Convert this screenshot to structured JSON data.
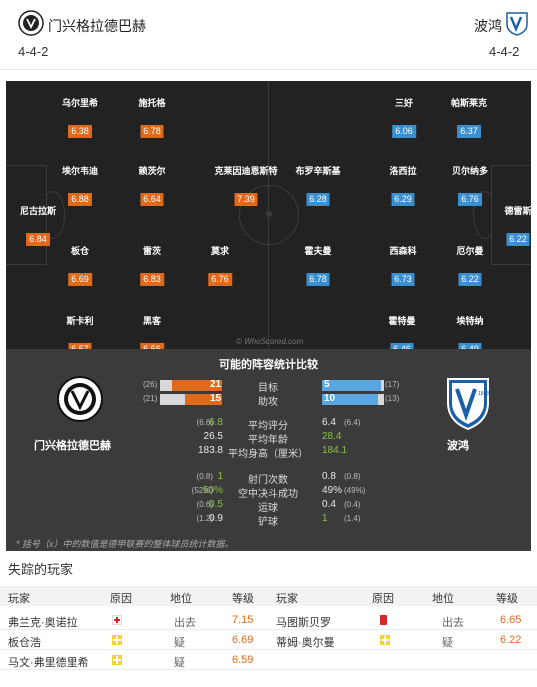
{
  "header": {
    "home": {
      "name": "门兴格拉德巴赫",
      "formation": "4-4-2"
    },
    "away": {
      "name": "波鸿",
      "formation": "4-4-2"
    }
  },
  "pitch": {
    "watermark": "© WhoScored.com",
    "home_players": [
      {
        "name": "乌尔里希",
        "rating": "6.38"
      },
      {
        "name": "施托格",
        "rating": "6.78"
      },
      {
        "name": "埃尔韦迪",
        "rating": "6.88"
      },
      {
        "name": "赖茨尔",
        "rating": "6.64"
      },
      {
        "name": "克莱因迪恩斯特",
        "rating": "7.39"
      },
      {
        "name": "尼古拉斯",
        "rating": "6.84"
      },
      {
        "name": "板仓",
        "rating": "6.69"
      },
      {
        "name": "雷茨",
        "rating": "6.83"
      },
      {
        "name": "莫求",
        "rating": "6.76"
      },
      {
        "name": "斯卡利",
        "rating": "6.57"
      },
      {
        "name": "黑客",
        "rating": "6.56"
      }
    ],
    "away_players": [
      {
        "name": "三好",
        "rating": "6.06"
      },
      {
        "name": "帕斯莱克",
        "rating": "6.37"
      },
      {
        "name": "布罗辛斯基",
        "rating": "6.28"
      },
      {
        "name": "洛西拉",
        "rating": "6.29"
      },
      {
        "name": "贝尔纳多",
        "rating": "6.76"
      },
      {
        "name": "德雷斯",
        "rating": "6.22"
      },
      {
        "name": "霍夫曼",
        "rating": "6.78"
      },
      {
        "name": "西森科",
        "rating": "6.73"
      },
      {
        "name": "厄尔曼",
        "rating": "6.22"
      },
      {
        "name": "霍特曼",
        "rating": "6.46"
      },
      {
        "name": "埃特纳",
        "rating": "6.49"
      }
    ]
  },
  "stats": {
    "title": "可能的阵容统计比较",
    "home_team": "门兴格拉德巴赫",
    "away_team": "波鸿",
    "bars": [
      {
        "label": "目标",
        "home_small": "(26)",
        "home": "21",
        "away": "5",
        "away_small": "(17)",
        "home_frac": 0.8,
        "away_frac": 0.2
      },
      {
        "label": "助攻",
        "home_small": "(21)",
        "home": "15",
        "away": "10",
        "away_small": "(13)",
        "home_frac": 0.6,
        "away_frac": 0.4
      }
    ],
    "rows": [
      {
        "label": "平均评分",
        "home_small": "(6.6)",
        "home": "6.8",
        "away": "6.4",
        "away_small": "(6.4)",
        "hl": "home"
      },
      {
        "label": "平均年龄",
        "home_small": "",
        "home": "26.5",
        "away": "28.4",
        "away_small": "",
        "hl": "away"
      },
      {
        "label": "平均身高（厘米）",
        "home_small": "",
        "home": "183.8",
        "away": "184.1",
        "away_small": "",
        "hl": "away"
      },
      {
        "label": "射门次数",
        "home_small": "(0.8)",
        "home": "1",
        "away": "0.8",
        "away_small": "(0.8)",
        "hl": "home"
      },
      {
        "label": "空中决斗成功",
        "home_small": "(52%)",
        "home": "50%",
        "away": "49%",
        "away_small": "(49%)",
        "hl": "home"
      },
      {
        "label": "运球",
        "home_small": "(0.6)",
        "home": "0.5",
        "away": "0.4",
        "away_small": "(0.4)",
        "hl": "home"
      },
      {
        "label": "铲球",
        "home_small": "(1.2)",
        "home": "0.9",
        "away": "1",
        "away_small": "(1.4)",
        "hl": "away"
      }
    ],
    "note": "* 括号（x）中的数值是德甲联赛的整体球员统计数据。"
  },
  "missing": {
    "title": "失踪的玩家",
    "headers": {
      "player": "玩家",
      "reason": "原因",
      "status": "地位",
      "rating": "等级"
    },
    "home": [
      {
        "player": "弗兰克·奥诺拉",
        "icon": "injury",
        "status": "出去",
        "rating": "7.15"
      },
      {
        "player": "板仓浩",
        "icon": "doubtful",
        "status": "疑",
        "rating": "6.69"
      },
      {
        "player": "马文·弗里德里希",
        "icon": "doubtful",
        "status": "疑",
        "rating": "6.59"
      }
    ],
    "away": [
      {
        "player": "马图斯贝罗",
        "icon": "red-card",
        "status": "出去",
        "rating": "6.65"
      },
      {
        "player": "蒂姆·奥尔曼",
        "icon": "doubtful",
        "status": "疑",
        "rating": "6.22"
      }
    ]
  },
  "colors": {
    "home_accent": "#e06a1c",
    "away_accent": "#3a8fd1",
    "highlight": "#8ac43f"
  }
}
